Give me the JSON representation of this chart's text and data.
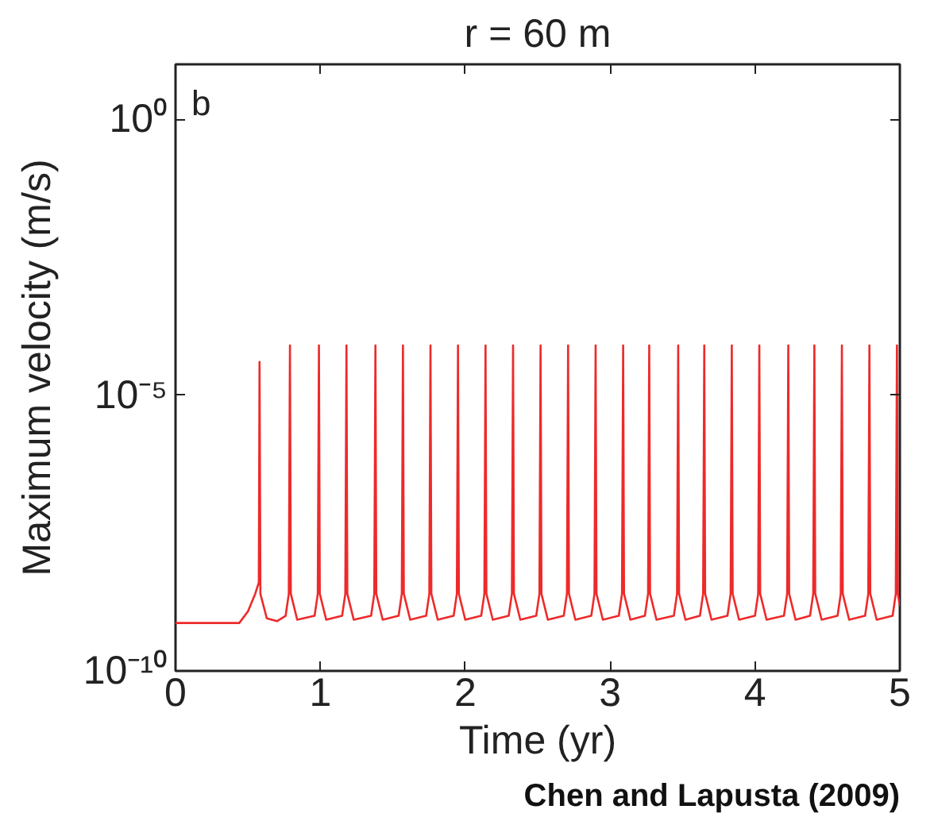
{
  "chart_data": {
    "type": "line",
    "title": "r = 60 m",
    "xlabel": "Time (yr)",
    "ylabel": "Maximum velocity (m/s)",
    "annotations": [
      "b",
      "Chen and Lapusta (2009)"
    ],
    "log": "y",
    "grid": false,
    "marker": "none",
    "line_style": "solid",
    "xlim": [
      0,
      5
    ],
    "xticks": [
      0,
      1,
      2,
      3,
      4,
      5
    ],
    "ylim": [
      1e-10,
      10
    ],
    "yticks": [
      {
        "value": 1e-10,
        "label": "10⁻¹⁰"
      },
      {
        "value": 1e-05,
        "label": "10⁻⁵"
      },
      {
        "value": 1,
        "label": "10⁰"
      }
    ],
    "series": [
      {
        "color": "#ee2a2a",
        "x": [
          0,
          0.44,
          0.5,
          0.55,
          0.575,
          0.58,
          0.586,
          0.63,
          0.7,
          0.76,
          0.782,
          0.79,
          0.796,
          0.84,
          0.96,
          0.982,
          0.99,
          0.996,
          1.04,
          1.15,
          1.172,
          1.18,
          1.186,
          1.23,
          1.35,
          1.372,
          1.38,
          1.386,
          1.43,
          1.54,
          1.562,
          1.57,
          1.576,
          1.62,
          1.73,
          1.752,
          1.76,
          1.766,
          1.81,
          1.92,
          1.942,
          1.95,
          1.956,
          2.0,
          2.11,
          2.132,
          2.14,
          2.146,
          2.19,
          2.3,
          2.322,
          2.33,
          2.336,
          2.38,
          2.49,
          2.512,
          2.52,
          2.526,
          2.57,
          2.68,
          2.702,
          2.71,
          2.716,
          2.76,
          2.87,
          2.892,
          2.9,
          2.906,
          2.95,
          3.06,
          3.082,
          3.09,
          3.096,
          3.14,
          3.24,
          3.262,
          3.27,
          3.276,
          3.32,
          3.44,
          3.462,
          3.47,
          3.476,
          3.52,
          3.62,
          3.642,
          3.65,
          3.656,
          3.7,
          3.81,
          3.832,
          3.84,
          3.846,
          3.89,
          4.0,
          4.022,
          4.03,
          4.036,
          4.08,
          4.2,
          4.222,
          4.23,
          4.236,
          4.28,
          4.38,
          4.402,
          4.41,
          4.416,
          4.46,
          4.57,
          4.592,
          4.6,
          4.606,
          4.65,
          4.76,
          4.782,
          4.79,
          4.796,
          4.84,
          4.95,
          4.972,
          4.98,
          4.986,
          5.0
        ],
        "values": [
          7.4e-10,
          7.4e-10,
          1.2e-09,
          2.5e-09,
          4e-09,
          4e-05,
          2.5e-09,
          9e-10,
          8e-10,
          1e-09,
          2.5e-09,
          8e-05,
          2.5e-09,
          8.5e-10,
          1e-09,
          2.5e-09,
          8e-05,
          2.5e-09,
          8.5e-10,
          1e-09,
          2.5e-09,
          8e-05,
          2.5e-09,
          8.5e-10,
          1e-09,
          2.5e-09,
          8e-05,
          2.5e-09,
          8.5e-10,
          1e-09,
          2.5e-09,
          8e-05,
          2.5e-09,
          8.5e-10,
          1e-09,
          2.5e-09,
          8e-05,
          2.5e-09,
          8.5e-10,
          1e-09,
          2.5e-09,
          8e-05,
          2.5e-09,
          8.5e-10,
          1e-09,
          2.5e-09,
          8e-05,
          2.5e-09,
          8.5e-10,
          1e-09,
          2.5e-09,
          8e-05,
          2.5e-09,
          8.5e-10,
          1e-09,
          2.5e-09,
          8e-05,
          2.5e-09,
          8.5e-10,
          1e-09,
          2.5e-09,
          8e-05,
          2.5e-09,
          8.5e-10,
          1e-09,
          2.5e-09,
          8e-05,
          2.5e-09,
          8.5e-10,
          1e-09,
          2.5e-09,
          8e-05,
          2.5e-09,
          8.5e-10,
          1e-09,
          2.5e-09,
          8e-05,
          2.5e-09,
          8.5e-10,
          1e-09,
          2.5e-09,
          8e-05,
          2.5e-09,
          8.5e-10,
          1e-09,
          2.5e-09,
          8e-05,
          2.5e-09,
          8.5e-10,
          1e-09,
          2.5e-09,
          8e-05,
          2.5e-09,
          8.5e-10,
          1e-09,
          2.5e-09,
          8e-05,
          2.5e-09,
          8.5e-10,
          1e-09,
          2.5e-09,
          8e-05,
          2.5e-09,
          8.5e-10,
          1e-09,
          2.5e-09,
          8e-05,
          2.5e-09,
          8.5e-10,
          1e-09,
          2.5e-09,
          8e-05,
          2.5e-09,
          8.5e-10,
          1e-09,
          2.5e-09,
          8e-05,
          2.5e-09,
          8.5e-10,
          1e-09,
          2.5e-09,
          8e-05,
          2.5e-09,
          1.5e-09
        ]
      }
    ]
  }
}
